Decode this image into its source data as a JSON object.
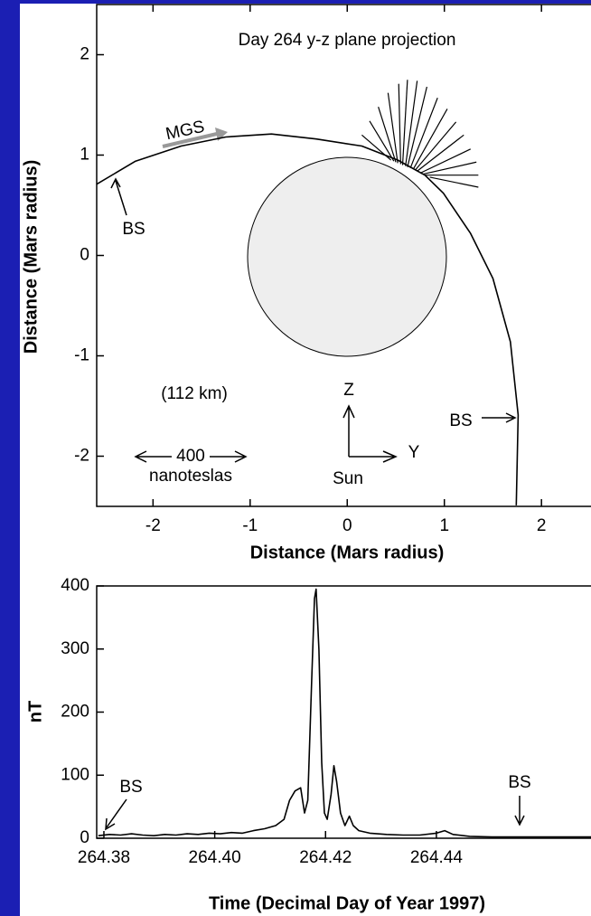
{
  "chart_data": [
    {
      "type": "line",
      "title": "Day 264 y-z plane projection",
      "xlabel": "Distance (Mars radius)",
      "ylabel": "Distance (Mars radius)",
      "xlim": [
        -2.58,
        2.51
      ],
      "ylim": [
        -2.5,
        2.5
      ],
      "xticks": [
        -2,
        -1,
        0,
        1,
        2
      ],
      "yticks": [
        -2,
        -1,
        0,
        1,
        2
      ],
      "annotations": [
        "MGS",
        "BS",
        "BS",
        "(112 km)",
        "Z",
        "Y",
        "Sun",
        "400",
        "nanoteslas"
      ],
      "series": [
        {
          "color": "#000000",
          "x": [
            -2.58,
            -2.18,
            -1.71,
            -1.25,
            -0.78,
            -0.32,
            0.15,
            0.52,
            0.8,
            0.99,
            1.27,
            1.5,
            1.68,
            1.76,
            1.74
          ],
          "values": [
            0.71,
            0.94,
            1.09,
            1.18,
            1.21,
            1.16,
            1.09,
            0.95,
            0.8,
            0.62,
            0.22,
            -0.23,
            -0.86,
            -1.59,
            -2.49
          ]
        }
      ],
      "vectors": {
        "color": "#000000",
        "x": [
          0.45,
          0.48,
          0.5,
          0.52,
          0.55,
          0.57,
          0.6,
          0.62,
          0.65,
          0.68,
          0.7,
          0.72,
          0.75,
          0.78,
          0.8,
          0.85
        ],
        "y": [
          0.95,
          0.94,
          0.93,
          0.92,
          0.91,
          0.9,
          0.89,
          0.88,
          0.87,
          0.86,
          0.85,
          0.84,
          0.82,
          0.81,
          0.8,
          0.78
        ],
        "dx": [
          -0.3,
          -0.25,
          -0.18,
          -0.1,
          -0.02,
          0.05,
          0.12,
          0.2,
          0.28,
          0.35,
          0.42,
          0.48,
          0.52,
          0.55,
          0.55,
          0.5
        ],
        "dy": [
          0.25,
          0.4,
          0.55,
          0.7,
          0.8,
          0.85,
          0.85,
          0.8,
          0.7,
          0.6,
          0.48,
          0.36,
          0.24,
          0.12,
          0.0,
          -0.1
        ]
      }
    },
    {
      "type": "line",
      "xlabel": "Time (Decimal Day of Year 1997)",
      "ylabel": "nT",
      "xlim": [
        264.3787,
        264.4679
      ],
      "ylim": [
        0,
        400
      ],
      "xticks": [
        264.38,
        {
          "value": 264.4,
          "label": "264.40"
        },
        264.42,
        264.44
      ],
      "yticks": [
        0,
        100,
        200,
        300,
        400
      ],
      "annotations": [
        "BS",
        "BS"
      ],
      "series": [
        {
          "color": "#000000",
          "x": [
            264.379,
            264.381,
            264.383,
            264.385,
            264.387,
            264.389,
            264.391,
            264.393,
            264.395,
            264.397,
            264.399,
            264.401,
            264.403,
            264.405,
            264.407,
            264.409,
            264.411,
            264.4125,
            264.4135,
            264.4145,
            264.4155,
            264.4162,
            264.4168,
            264.4175,
            264.418,
            264.4183,
            264.4188,
            264.4193,
            264.4198,
            264.4203,
            264.421,
            264.4215,
            264.422,
            264.4227,
            264.4235,
            264.4243,
            264.425,
            264.426,
            264.428,
            264.431,
            264.434,
            264.437,
            264.44,
            264.4415,
            264.443,
            264.446,
            264.45,
            264.455,
            264.46,
            264.4679
          ],
          "values": [
            4,
            6,
            5,
            7,
            5,
            4,
            6,
            5,
            7,
            6,
            8,
            7,
            9,
            8,
            12,
            15,
            20,
            30,
            60,
            75,
            80,
            40,
            60,
            250,
            380,
            395,
            300,
            120,
            40,
            30,
            70,
            115,
            90,
            40,
            20,
            35,
            20,
            12,
            8,
            6,
            5,
            5,
            8,
            12,
            6,
            3,
            2,
            2,
            2,
            2
          ]
        }
      ]
    }
  ]
}
